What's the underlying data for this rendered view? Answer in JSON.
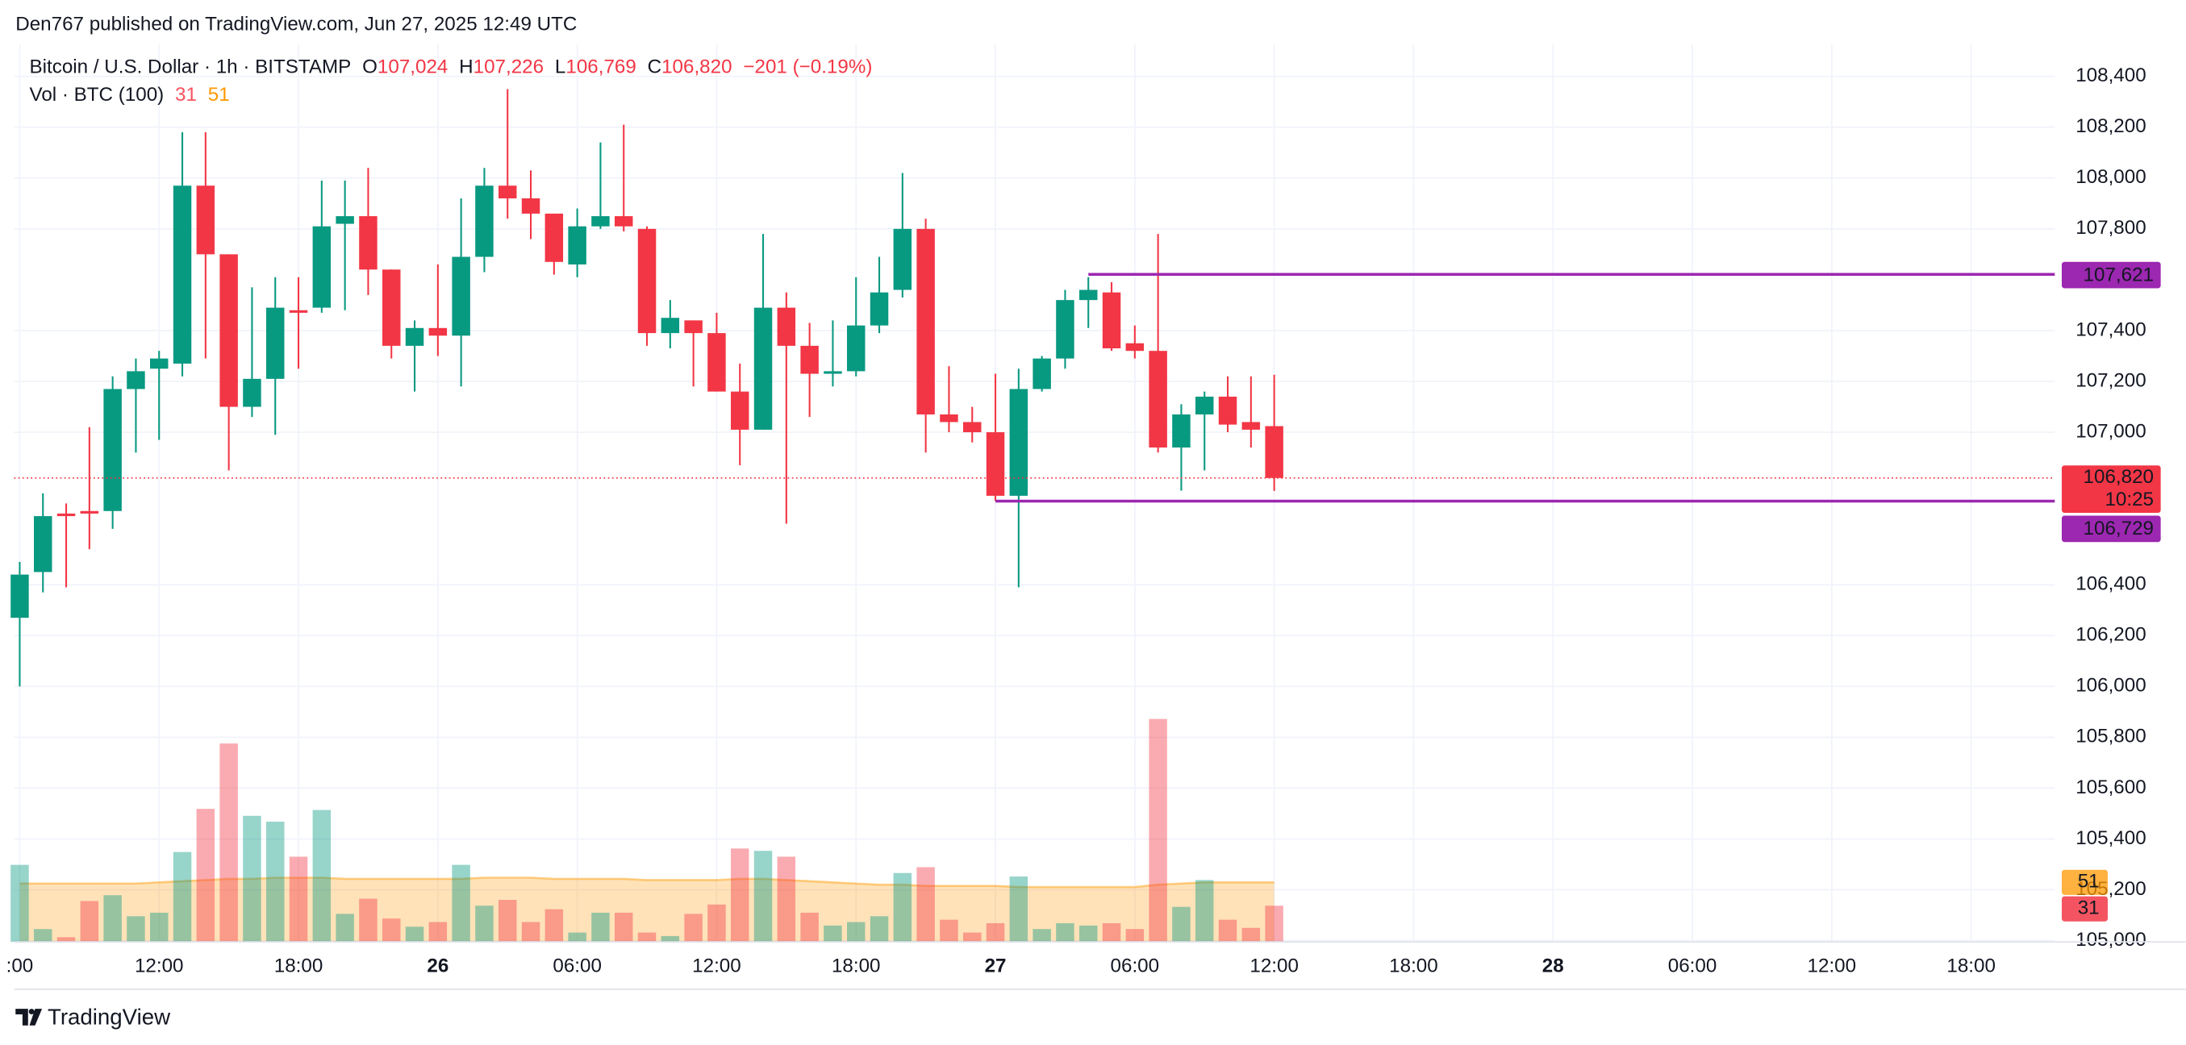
{
  "header": {
    "published": "Den767 published on TradingView.com, Jun 27, 2025 12:49 UTC"
  },
  "chart_data": {
    "type": "candlestick",
    "title": "Bitcoin / U.S. Dollar · 1h · BITSTAMP",
    "ohlc_legend": [
      {
        "key": "O",
        "value": 107024,
        "value_label": "107,024"
      },
      {
        "key": "H",
        "value": 107226,
        "value_label": "107,226"
      },
      {
        "key": "L",
        "value": 106769,
        "value_label": "106,769"
      },
      {
        "key": "C",
        "value": 106820,
        "value_label": "106,820"
      }
    ],
    "change": {
      "value": -201,
      "label": "−201 (−0.19%)"
    },
    "up_color": "#089981",
    "down_color": "#f23645",
    "open": [
      106270,
      106450,
      106680,
      106690,
      106690,
      107170,
      107250,
      107270,
      107970,
      107700,
      107100,
      107210,
      107480,
      107490,
      107820,
      107850,
      107640,
      107340,
      107410,
      107380,
      107690,
      107970,
      107920,
      107860,
      107660,
      107810,
      107850,
      107800,
      107390,
      107440,
      107390,
      107160,
      107010,
      107490,
      107340,
      107230,
      107240,
      107420,
      107560,
      107800,
      107070,
      107040,
      107000,
      106750,
      107170,
      107290,
      107520,
      107550,
      107350,
      107320,
      106940,
      107070,
      107140,
      107040,
      107024
    ],
    "high": [
      106490,
      106760,
      106720,
      107020,
      107220,
      107290,
      107320,
      108180,
      108180,
      107700,
      107570,
      107610,
      107610,
      107990,
      107990,
      108040,
      107640,
      107440,
      107660,
      107920,
      108040,
      108350,
      108030,
      107860,
      107880,
      108140,
      108210,
      107810,
      107520,
      107440,
      107470,
      107270,
      107780,
      107550,
      107430,
      107440,
      107610,
      107690,
      108020,
      107840,
      107260,
      107100,
      107230,
      107250,
      107300,
      107560,
      107610,
      107590,
      107420,
      107780,
      107110,
      107160,
      107220,
      107220,
      107226
    ],
    "low": [
      106000,
      106370,
      106390,
      106540,
      106620,
      106920,
      106970,
      107220,
      107290,
      106850,
      107060,
      106990,
      107250,
      107470,
      107480,
      107540,
      107290,
      107160,
      107300,
      107180,
      107630,
      107840,
      107760,
      107620,
      107610,
      107800,
      107790,
      107340,
      107330,
      107180,
      107160,
      106870,
      107010,
      106640,
      107060,
      107180,
      107220,
      107390,
      107530,
      106920,
      107000,
      106960,
      106730,
      106390,
      107160,
      107250,
      107410,
      107320,
      107290,
      106920,
      106770,
      106850,
      107000,
      106940,
      106769
    ],
    "close": [
      106440,
      106670,
      106670,
      106680,
      107170,
      107240,
      107290,
      107970,
      107700,
      107100,
      107210,
      107490,
      107470,
      107810,
      107850,
      107640,
      107340,
      107410,
      107380,
      107690,
      107970,
      107920,
      107860,
      107670,
      107810,
      107850,
      107810,
      107390,
      107450,
      107390,
      107160,
      107010,
      107490,
      107340,
      107230,
      107240,
      107420,
      107550,
      107800,
      107070,
      107040,
      107000,
      106750,
      107170,
      107290,
      107520,
      107560,
      107330,
      107320,
      106940,
      107070,
      107140,
      107030,
      107010,
      106820
    ],
    "ylim": [
      104995,
      108525
    ],
    "yticks": [
      {
        "value": 108400,
        "label": "108,400"
      },
      {
        "value": 108200,
        "label": "108,200"
      },
      {
        "value": 108000,
        "label": "108,000"
      },
      {
        "value": 107800,
        "label": "107,800"
      },
      {
        "value": 107400,
        "label": "107,400"
      },
      {
        "value": 107200,
        "label": "107,200"
      },
      {
        "value": 107000,
        "label": "107,000"
      },
      {
        "value": 106400,
        "label": "106,400"
      },
      {
        "value": 106200,
        "label": "106,200"
      },
      {
        "value": 106000,
        "label": "106,000"
      },
      {
        "value": 105800,
        "label": "105,800"
      },
      {
        "value": 105600,
        "label": "105,600"
      },
      {
        "value": 105400,
        "label": "105,400"
      },
      {
        "value": 105200,
        "label": "105,200"
      },
      {
        "value": 105000,
        "label": "105,000"
      }
    ],
    "xticks": [
      ":00",
      "12:00",
      "18:00",
      "26",
      "06:00",
      "12:00",
      "18:00",
      "27",
      "06:00",
      "12:00",
      "18:00",
      "28",
      "06:00",
      "12:00",
      "18:00"
    ],
    "grid": true,
    "volume": {
      "title": "Vol · BTC (100)",
      "values": [
        66,
        11,
        4,
        35,
        40,
        22,
        25,
        77,
        114,
        170,
        108,
        103,
        73,
        113,
        24,
        37,
        20,
        13,
        17,
        66,
        31,
        36,
        17,
        28,
        8,
        25,
        25,
        8,
        5,
        24,
        32,
        80,
        78,
        73,
        25,
        14,
        17,
        22,
        59,
        64,
        19,
        8,
        16,
        56,
        11,
        16,
        14,
        16,
        11,
        191,
        30,
        53,
        19,
        12,
        31
      ],
      "ma": [
        50,
        50,
        50,
        50,
        50,
        50,
        51,
        52,
        53,
        54,
        54,
        55,
        55,
        55,
        54,
        54,
        54,
        54,
        54,
        54,
        55,
        55,
        55,
        54,
        54,
        54,
        54,
        53,
        53,
        53,
        53,
        54,
        54,
        53,
        52,
        51,
        50,
        49,
        49,
        48,
        48,
        48,
        48,
        47,
        47,
        47,
        47,
        47,
        47,
        49,
        50,
        51,
        51,
        51,
        51
      ],
      "ma_color": "#ff9800"
    },
    "levels": [
      {
        "value": 107621,
        "label": "107,621",
        "color": "#9c27b0"
      },
      {
        "value": 106729,
        "label": "106,729",
        "color": "#9c27b0"
      }
    ],
    "last_price": {
      "value": 106820,
      "label": "106,820",
      "countdown": "10:25"
    }
  },
  "footer": {
    "brand": "TradingView"
  }
}
